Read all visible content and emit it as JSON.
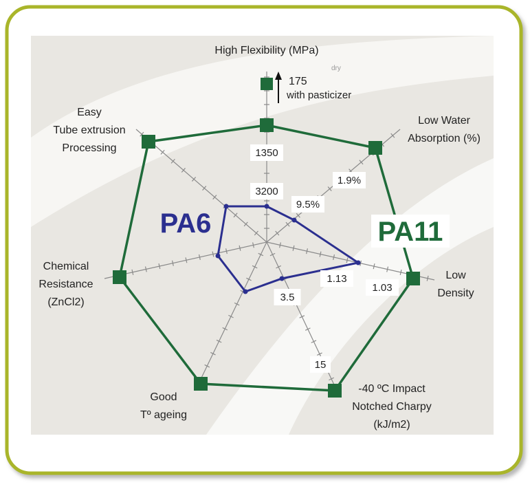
{
  "series": [
    {
      "name": "PA6",
      "color": "#2b2f8f"
    },
    {
      "name": "PA11",
      "color": "#1f6b3a"
    }
  ],
  "axes": [
    {
      "label": [
        "High Flexibility (MPa)"
      ]
    },
    {
      "label": [
        "Low Water",
        "Absorption (%)"
      ]
    },
    {
      "label": [
        "Low",
        "Density"
      ]
    },
    {
      "label": [
        "-40 ºC Impact",
        "Notched Charpy",
        "(kJ/m2)"
      ]
    },
    {
      "label": [
        "Good",
        "Tº ageing"
      ]
    },
    {
      "label": [
        "Chemical",
        "Resistance",
        "(ZnCl2)"
      ]
    },
    {
      "label": [
        "Easy",
        "Tube extrusion",
        "Processing"
      ]
    }
  ],
  "value_labels": [
    "1350",
    "3200",
    "9.5%",
    "1.9%",
    "1.13",
    "1.03",
    "15",
    "3.5"
  ],
  "annotation": {
    "value": "175",
    "note": "dry",
    "text": "with pasticizer"
  }
}
